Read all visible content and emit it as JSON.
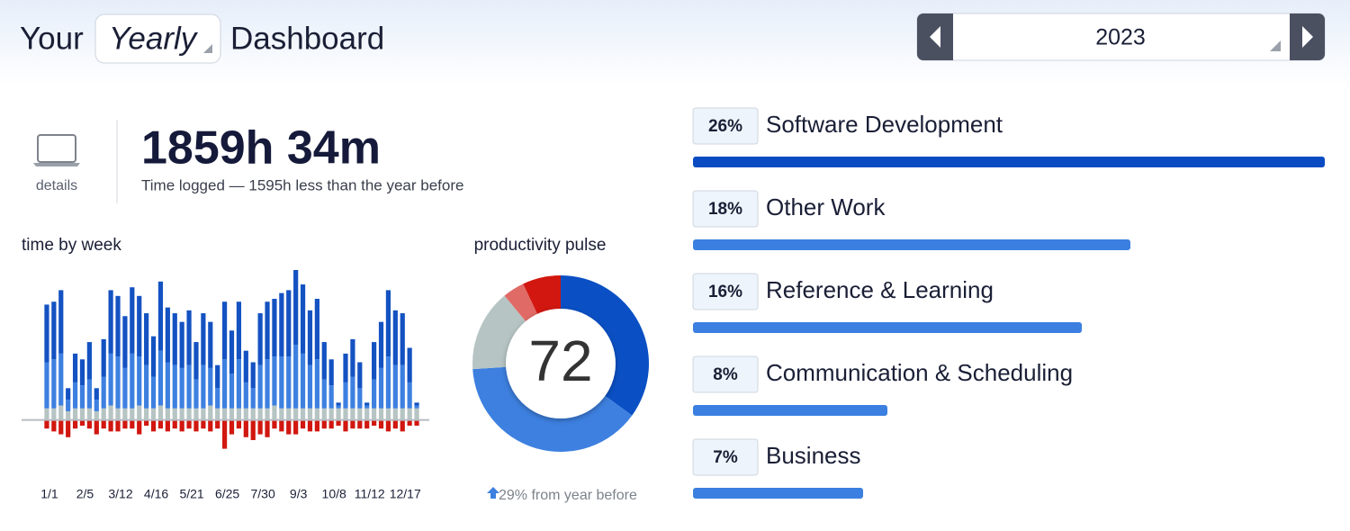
{
  "header": {
    "title_prefix": "Your",
    "period": "Yearly",
    "title_suffix": "Dashboard",
    "year": "2023"
  },
  "summary": {
    "details": "details",
    "time_logged": "1859h 34m",
    "caption": "Time logged — 1595h less than the year before"
  },
  "chart_data": [
    {
      "type": "stacked-bar",
      "title": "time by week",
      "categories": [
        "1/1",
        null,
        null,
        null,
        null,
        "2/5",
        null,
        null,
        null,
        null,
        "3/12",
        null,
        null,
        null,
        null,
        "4/16",
        null,
        null,
        null,
        null,
        "5/21",
        null,
        null,
        null,
        null,
        "6/25",
        null,
        null,
        null,
        null,
        "7/30",
        null,
        null,
        null,
        null,
        "9/3",
        null,
        null,
        null,
        null,
        "10/8",
        null,
        null,
        null,
        null,
        "11/12",
        null,
        null,
        null,
        null,
        "12/17",
        null,
        null
      ],
      "ylim": [
        -12,
        52
      ],
      "series": [
        {
          "color": "#b6c4c3",
          "values": [
            4,
            4,
            5,
            3,
            4,
            4,
            4,
            3,
            4,
            5,
            4,
            4,
            4,
            5,
            4,
            4,
            5,
            4,
            4,
            4,
            4,
            4,
            4,
            5,
            4,
            4,
            4,
            4,
            4,
            4,
            4,
            4,
            5,
            4,
            4,
            4,
            4,
            4,
            4,
            4,
            4,
            4,
            4,
            4,
            4,
            4,
            4,
            4,
            4,
            4,
            4,
            4,
            4
          ]
        },
        {
          "color": "#3d80e0",
          "values": [
            16,
            17,
            18,
            4,
            9,
            8,
            10,
            4,
            11,
            18,
            18,
            14,
            19,
            17,
            15,
            11,
            19,
            16,
            15,
            14,
            15,
            10,
            15,
            13,
            7,
            17,
            12,
            17,
            9,
            7,
            15,
            17,
            17,
            18,
            18,
            22,
            19,
            15,
            17,
            10,
            8,
            1,
            9,
            11,
            7,
            1,
            10,
            14,
            18,
            15,
            15,
            9,
            1
          ]
        },
        {
          "color": "#1452c2",
          "values": [
            20,
            20,
            22,
            4,
            10,
            9,
            13,
            4,
            13,
            22,
            21,
            18,
            23,
            21,
            18,
            14,
            24,
            19,
            18,
            16,
            19,
            13,
            18,
            16,
            8,
            20,
            15,
            20,
            11,
            9,
            18,
            20,
            20,
            22,
            23,
            26,
            24,
            19,
            21,
            13,
            9,
            1,
            10,
            13,
            9,
            1,
            13,
            16,
            23,
            19,
            18,
            12,
            1
          ]
        },
        {
          "color": "#d1170f",
          "values": [
            -3,
            -4,
            -5,
            -6,
            -3,
            -2,
            -3,
            -5,
            -3,
            -4,
            -4,
            -3,
            -3,
            -5,
            -2,
            -4,
            -3,
            -4,
            -3,
            -4,
            -3,
            -4,
            -3,
            -4,
            -3,
            -10,
            -5,
            -3,
            -6,
            -7,
            -5,
            -6,
            -3,
            -4,
            -5,
            -5,
            -3,
            -4,
            -4,
            -3,
            -3,
            -2,
            -4,
            -3,
            -3,
            -3,
            -2,
            -3,
            -4,
            -3,
            -4,
            -2,
            -2
          ]
        }
      ]
    },
    {
      "type": "donut",
      "title": "productivity pulse",
      "center_value": 72,
      "values": [
        35,
        39,
        15,
        4,
        7
      ],
      "colors": [
        "#0a50c4",
        "#3d80e0",
        "#b6c4c3",
        "#e06a66",
        "#d1170f"
      ],
      "note": "29% from year before"
    },
    {
      "type": "hbar",
      "categories": [
        "Software Development",
        "Other Work",
        "Reference & Learning",
        "Communication & Scheduling",
        "Business"
      ],
      "values": [
        26,
        18,
        16,
        8,
        7
      ],
      "value_labels": [
        "26%",
        "18%",
        "16%",
        "8%",
        "7%"
      ],
      "colors": [
        "#0a4bc2",
        "#3b7fe0",
        "#3b7fe0",
        "#3b7fe0",
        "#3b7fe0"
      ]
    }
  ]
}
